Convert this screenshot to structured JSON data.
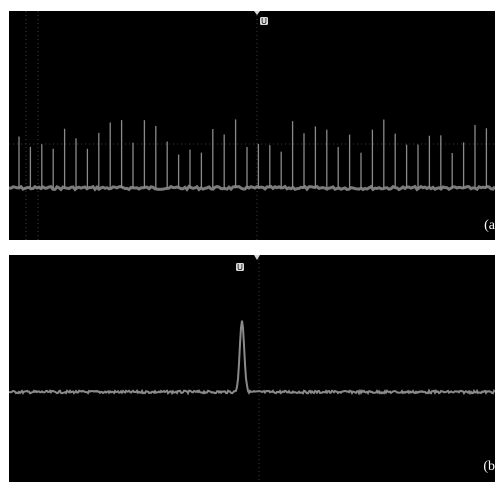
{
  "panels": [
    {
      "id": "a",
      "label": "(a",
      "trigger_marker": "U",
      "description_type": "pulse-train",
      "colors": {
        "background": "#000000",
        "trace": "#8a8a8a",
        "grid": "#3a3a3a",
        "marker": "#d8d8d8"
      }
    },
    {
      "id": "b",
      "label": "(b",
      "trigger_marker": "U",
      "description_type": "single-pulse",
      "colors": {
        "background": "#000000",
        "trace": "#8a8a8a",
        "grid": "#3a3a3a",
        "marker": "#d8d8d8"
      }
    }
  ],
  "icons": [
    "trigger-marker-icon",
    "trigger-arrow-icon"
  ]
}
